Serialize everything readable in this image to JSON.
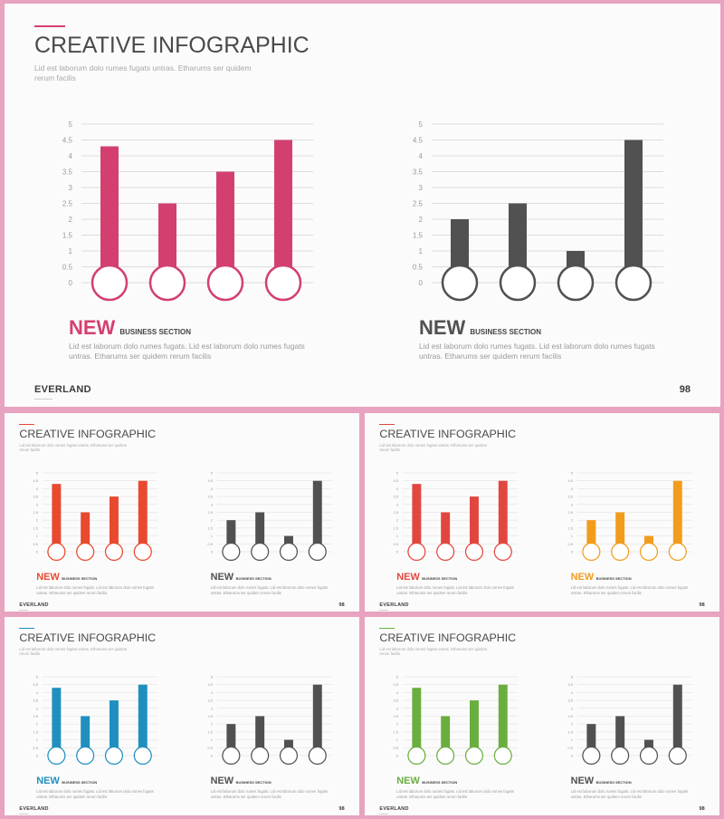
{
  "slides": [
    {
      "title": "CREATIVE INFOGRAPHIC",
      "subtitle": "Lid est laborum dolo rumes fugats untras. Etharums ser quidem rerum facilis",
      "brand": "EVERLAND",
      "page": "98",
      "accent": "#d3406f",
      "panels": [
        {
          "heading": "NEW",
          "section": "BUSINESS SECTION",
          "description": "Lid est laborum dolo rumes fugats. Lid est laborum dolo rumes fugats untras. Etharums ser quidem rerum facilis",
          "color": "#d3406f"
        },
        {
          "heading": "NEW",
          "section": "BUSINESS SECTION",
          "description": "Lid est laborum dolo rumes fugats. Lid est laborum dolo rumes fugats untras. Etharums ser quidem rerum facilis",
          "color": "#515151"
        }
      ]
    },
    {
      "title": "CREATIVE INFOGRAPHIC",
      "subtitle": "Lid est laborum dolo rumes fugats untras. Etharums ser quidem rerum facilis",
      "brand": "EVERLAND",
      "page": "98",
      "accent": "#e8492f",
      "panels": [
        {
          "heading": "NEW",
          "section": "BUSINESS SECTION",
          "description": "Lid est laborum dolo rumes fugats. Lid est laborum dolo rumes fugats untras. Etharums ser quidem rerum facilis",
          "color": "#e8492f"
        },
        {
          "heading": "NEW",
          "section": "BUSINESS SECTION",
          "description": "Lid est laborum dolo rumes fugats. Lid est laborum dolo rumes fugats untras. Etharums ser quidem rerum facilis",
          "color": "#515151"
        }
      ]
    },
    {
      "title": "CREATIVE INFOGRAPHIC",
      "subtitle": "Lid est laborum dolo rumes fugats untras. Etharums ser quidem rerum facilis",
      "brand": "EVERLAND",
      "page": "98",
      "accent": "#e2473f",
      "panels": [
        {
          "heading": "NEW",
          "section": "BUSINESS SECTION",
          "description": "Lid est laborum dolo rumes fugats. Lid est laborum dolo rumes fugats untras. Etharums ser quidem rerum facilis",
          "color": "#e2473f"
        },
        {
          "heading": "NEW",
          "section": "BUSINESS SECTION",
          "description": "Lid est laborum dolo rumes fugats. Lid est laborum dolo rumes fugats untras. Etharums ser quidem rerum facilis",
          "color": "#f39c1c"
        }
      ]
    },
    {
      "title": "CREATIVE INFOGRAPHIC",
      "subtitle": "Lid est laborum dolo rumes fugats untras. Etharums ser quidem rerum facilis",
      "brand": "EVERLAND",
      "page": "98",
      "accent": "#1f8fbf",
      "panels": [
        {
          "heading": "NEW",
          "section": "BUSINESS SECTION",
          "description": "Lid est laborum dolo rumes fugats. Lid est laborum dolo rumes fugats untras. Etharums ser quidem rerum facilis",
          "color": "#1f8fbf"
        },
        {
          "heading": "NEW",
          "section": "BUSINESS SECTION",
          "description": "Lid est laborum dolo rumes fugats. Lid est laborum dolo rumes fugats untras. Etharums ser quidem rerum facilis",
          "color": "#515151"
        }
      ]
    },
    {
      "title": "CREATIVE INFOGRAPHIC",
      "subtitle": "Lid est laborum dolo rumes fugats untras. Etharums ser quidem rerum facilis",
      "brand": "EVERLAND",
      "page": "98",
      "accent": "#6aae3f",
      "panels": [
        {
          "heading": "NEW",
          "section": "BUSINESS SECTION",
          "description": "Lid est laborum dolo rumes fugats. Lid est laborum dolo rumes fugats untras. Etharums ser quidem rerum facilis",
          "color": "#6aae3f"
        },
        {
          "heading": "NEW",
          "section": "BUSINESS SECTION",
          "description": "Lid est laborum dolo rumes fugats. Lid est laborum dolo rumes fugats untras. Etharums ser quidem rerum facilis",
          "color": "#515151"
        }
      ]
    }
  ],
  "chart_data": [
    {
      "type": "bar",
      "categories": [
        "",
        "",
        "",
        ""
      ],
      "values": [
        4.3,
        2.5,
        3.5,
        4.5
      ],
      "ylim": [
        0,
        5
      ],
      "yticks": [
        "0",
        "0.5",
        "1",
        "1.5",
        "2",
        "2.5",
        "3",
        "3.5",
        "4",
        "4.5",
        "5"
      ],
      "grid": true,
      "color": "#d3406f"
    },
    {
      "type": "bar",
      "categories": [
        "",
        "",
        "",
        ""
      ],
      "values": [
        2.0,
        2.5,
        1.0,
        4.5
      ],
      "ylim": [
        0,
        5
      ],
      "yticks": [
        "0",
        "0.5",
        "1",
        "1.5",
        "2",
        "2.5",
        "3",
        "3.5",
        "4",
        "4.5",
        "5"
      ],
      "grid": true,
      "color": "#515151"
    }
  ]
}
